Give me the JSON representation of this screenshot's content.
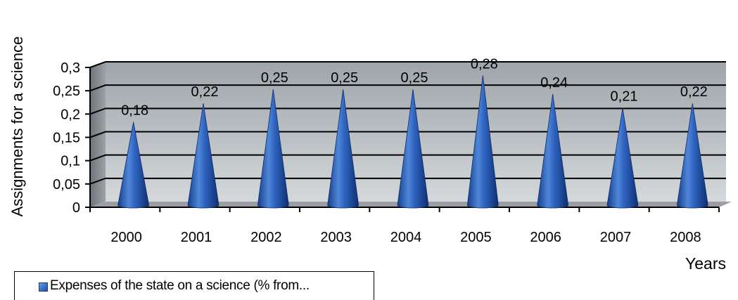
{
  "chart_data": {
    "type": "bar",
    "categories": [
      "2000",
      "2001",
      "2002",
      "2003",
      "2004",
      "2005",
      "2006",
      "2007",
      "2008"
    ],
    "values": [
      0.18,
      0.22,
      0.25,
      0.25,
      0.25,
      0.28,
      0.24,
      0.21,
      0.22
    ],
    "value_labels": [
      "0,18",
      "0,22",
      "0,25",
      "0,25",
      "0,25",
      "0,28",
      "0,24",
      "0,21",
      "0,22"
    ],
    "yticks": [
      0,
      0.05,
      0.1,
      0.15,
      0.2,
      0.25,
      0.3
    ],
    "ytick_labels": [
      "0",
      "0,05",
      "0,1",
      "0,15",
      "0,2",
      "0,25",
      "0,3"
    ],
    "ylim": [
      0,
      0.3
    ],
    "xlabel": "Years",
    "ylabel": "Assignments for a science",
    "legend_position": "bottom-left",
    "series": [
      {
        "name": "Expenses of the state on a science (% from...",
        "color": "#2d63bd"
      }
    ],
    "grid": true,
    "bar_shape": "cone"
  }
}
